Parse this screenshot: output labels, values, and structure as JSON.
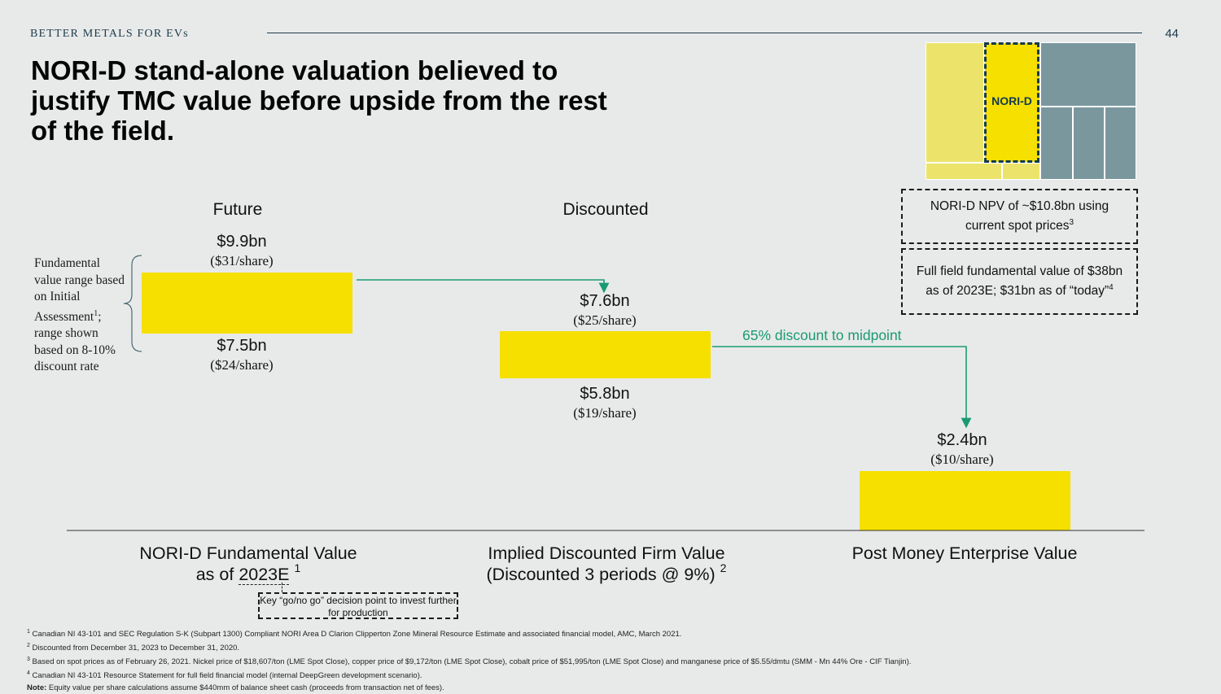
{
  "header": {
    "eyebrow": "BETTER METALS FOR EVs",
    "page_number": "44"
  },
  "title": "NORI-D stand-alone valuation believed to justify TMC value before upside from the rest of the field.",
  "field_map": {
    "highlight_label": "NORI-D",
    "colors": {
      "light_yellow": "#ece46a",
      "nori_d_yellow": "#f5e000",
      "slate": "#7a979e",
      "outline": "#133a4f"
    }
  },
  "callouts": {
    "npv_text": "NORI-D NPV of ~$10.8bn using current spot prices",
    "npv_sup": "3",
    "full_field_text": "Full field fundamental value of $38bn as of 2023E; $31bn as of “today”",
    "full_field_sup": "4"
  },
  "columns": {
    "future_head": "Future",
    "discounted_head": "Discounted"
  },
  "side_note": {
    "text_a": "Fundamental value range based on Initial Assessment",
    "sup": "1",
    "text_b": "; range shown based on 8-10% discount rate"
  },
  "chart_data": {
    "type": "bar",
    "title": "",
    "xlabel": "",
    "ylabel": "",
    "categories": [
      "NORI-D Fundamental Value as of 2023E",
      "Implied Discounted Firm Value (Discounted 3 periods @ 9%)",
      "Post Money Enterprise Value"
    ],
    "series": [
      {
        "values_low": [
          7.5,
          5.8,
          0
        ],
        "values_high": [
          9.9,
          7.6,
          2.4
        ],
        "unit": "bn USD"
      }
    ],
    "labels": {
      "high": [
        "$9.9bn",
        "$7.6bn",
        "$2.4bn"
      ],
      "high_per_share": [
        "($31/share)",
        "($25/share)",
        "($10/share)"
      ],
      "low": [
        "$7.5bn",
        "$5.8bn",
        ""
      ],
      "low_per_share": [
        "($24/share)",
        "($19/share)",
        ""
      ]
    },
    "annotation": "65% discount to midpoint",
    "colors": {
      "bar": "#f5e000",
      "arrow": "#1a9a72",
      "axis": "#333333"
    }
  },
  "categories": {
    "c1_line1": "NORI-D Fundamental Value",
    "c1_pre": "as of ",
    "c1_underlined": "2023E",
    "c1_sup": "1",
    "c2_line1": "Implied Discounted Firm Value",
    "c2_line2": "(Discounted 3 periods @ 9%)",
    "c2_sup": "2",
    "c3_line1": "Post Money Enterprise Value"
  },
  "gonogo": "Key “go/no go” decision point to invest further for production",
  "footnotes": {
    "f1": "Canadian NI 43-101 and SEC Regulation S-K (Subpart 1300) Compliant NORI Area D Clarion Clipperton Zone Mineral Resource Estimate and associated financial model, AMC, March 2021.",
    "f2": "Discounted from December 31, 2023 to December 31, 2020.",
    "f3": "Based on spot prices as of February 26, 2021. Nickel price of $18,607/ton (LME Spot Close), copper price of $9,172/ton (LME Spot Close), cobalt price of $51,995/ton (LME Spot Close) and manganese price of $5.55/dmtu (SMM - Mn 44% Ore - CIF Tianjin).",
    "f4": "Canadian NI 43-101 Resource Statement for full field financial model (internal DeepGreen development scenario).",
    "note_label": "Note:",
    "note": " Equity value per share calculations assume $440mm of balance sheet cash (proceeds from transaction net of fees)."
  },
  "footnote_marks": [
    "1",
    "2",
    "3",
    "4"
  ]
}
